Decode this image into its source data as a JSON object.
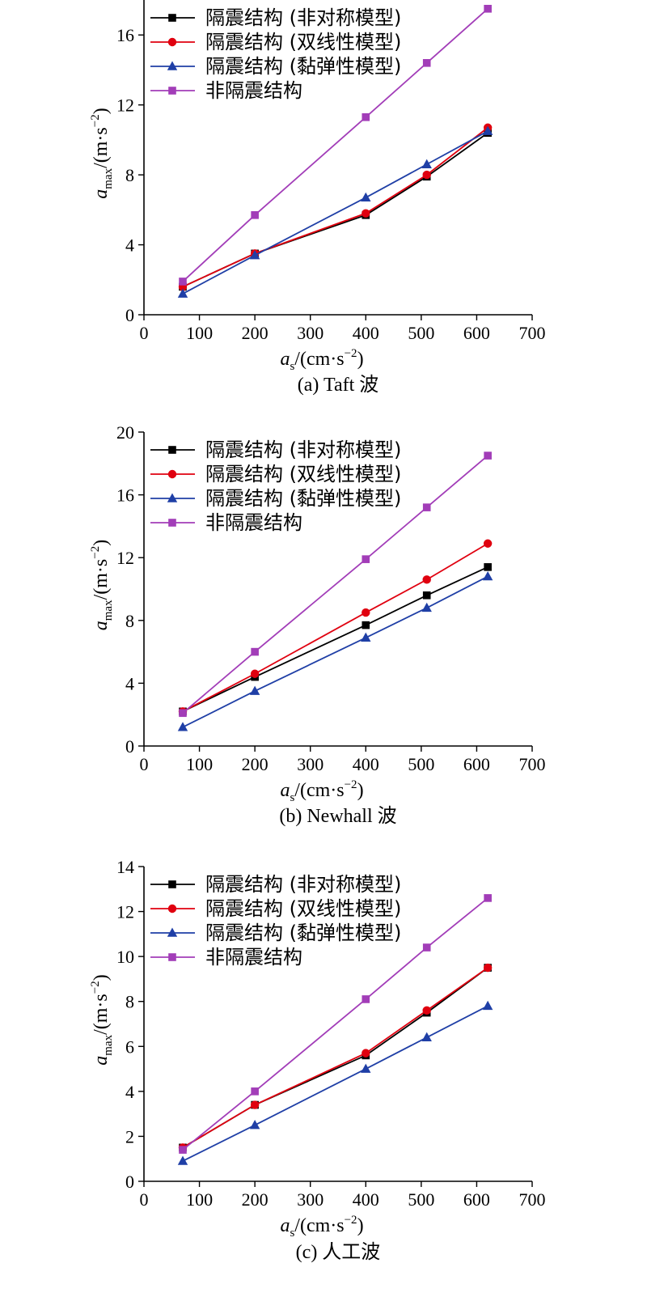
{
  "chart_data": [
    {
      "type": "line",
      "caption": "(a) Taft 波",
      "xlabel": {
        "var": "a",
        "sub": "s",
        "unit": "/(cm·s",
        "sup": "−2",
        "close": ")"
      },
      "ylabel": {
        "var": "a",
        "sub": "max",
        "unit": "/(m·s",
        "sup": "−2",
        "close": ")"
      },
      "xlim": [
        0,
        700
      ],
      "ylim": [
        0,
        18
      ],
      "xticks": [
        0,
        100,
        200,
        300,
        400,
        500,
        600,
        700
      ],
      "yticks": [
        0,
        4,
        8,
        12,
        16
      ],
      "x": [
        70,
        200,
        400,
        510,
        620
      ],
      "series": [
        {
          "name": "隔震结构 (非对称模型)",
          "color": "#000000",
          "marker": "square",
          "values": [
            1.6,
            3.5,
            5.7,
            7.9,
            10.4
          ]
        },
        {
          "name": "隔震结构 (双线性模型)",
          "color": "#e0000f",
          "marker": "circle",
          "values": [
            1.6,
            3.5,
            5.8,
            8.0,
            10.7
          ]
        },
        {
          "name": "隔震结构 (黏弹性模型)",
          "color": "#1f3fa6",
          "marker": "triangle",
          "values": [
            1.2,
            3.4,
            6.7,
            8.6,
            10.5
          ]
        },
        {
          "name": "非隔震结构",
          "color": "#a23db8",
          "marker": "square",
          "values": [
            1.9,
            5.7,
            11.3,
            14.4,
            17.5
          ]
        }
      ]
    },
    {
      "type": "line",
      "caption": "(b) Newhall 波",
      "xlabel": {
        "var": "a",
        "sub": "s",
        "unit": "/(cm·s",
        "sup": "−2",
        "close": ")"
      },
      "ylabel": {
        "var": "a",
        "sub": "max",
        "unit": "/(m·s",
        "sup": "−2",
        "close": ")"
      },
      "xlim": [
        0,
        700
      ],
      "ylim": [
        0,
        20
      ],
      "xticks": [
        0,
        100,
        200,
        300,
        400,
        500,
        600,
        700
      ],
      "yticks": [
        0,
        4,
        8,
        12,
        16,
        20
      ],
      "x": [
        70,
        200,
        400,
        510,
        620
      ],
      "series": [
        {
          "name": "隔震结构 (非对称模型)",
          "color": "#000000",
          "marker": "square",
          "values": [
            2.2,
            4.4,
            7.7,
            9.6,
            11.4
          ]
        },
        {
          "name": "隔震结构 (双线性模型)",
          "color": "#e0000f",
          "marker": "circle",
          "values": [
            2.2,
            4.6,
            8.5,
            10.6,
            12.9
          ]
        },
        {
          "name": "隔震结构 (黏弹性模型)",
          "color": "#1f3fa6",
          "marker": "triangle",
          "values": [
            1.2,
            3.5,
            6.9,
            8.8,
            10.8
          ]
        },
        {
          "name": "非隔震结构",
          "color": "#a23db8",
          "marker": "square",
          "values": [
            2.1,
            6.0,
            11.9,
            15.2,
            18.5
          ]
        }
      ]
    },
    {
      "type": "line",
      "caption": "(c) 人工波",
      "xlabel": {
        "var": "a",
        "sub": "s",
        "unit": "/(cm·s",
        "sup": "−2",
        "close": ")"
      },
      "ylabel": {
        "var": "a",
        "sub": "max",
        "unit": "/(m·s",
        "sup": "−2",
        "close": ")"
      },
      "xlim": [
        0,
        700
      ],
      "ylim": [
        0,
        14
      ],
      "xticks": [
        0,
        100,
        200,
        300,
        400,
        500,
        600,
        700
      ],
      "yticks": [
        0,
        2,
        4,
        6,
        8,
        10,
        12,
        14
      ],
      "x": [
        70,
        200,
        400,
        510,
        620
      ],
      "series": [
        {
          "name": "隔震结构 (非对称模型)",
          "color": "#000000",
          "marker": "square",
          "values": [
            1.5,
            3.4,
            5.6,
            7.5,
            9.5
          ]
        },
        {
          "name": "隔震结构 (双线性模型)",
          "color": "#e0000f",
          "marker": "circle",
          "values": [
            1.5,
            3.4,
            5.7,
            7.6,
            9.5
          ]
        },
        {
          "name": "隔震结构 (黏弹性模型)",
          "color": "#1f3fa6",
          "marker": "triangle",
          "values": [
            0.9,
            2.5,
            5.0,
            6.4,
            7.8
          ]
        },
        {
          "name": "非隔震结构",
          "color": "#a23db8",
          "marker": "square",
          "values": [
            1.4,
            4.0,
            8.1,
            10.4,
            12.6
          ]
        }
      ]
    }
  ]
}
